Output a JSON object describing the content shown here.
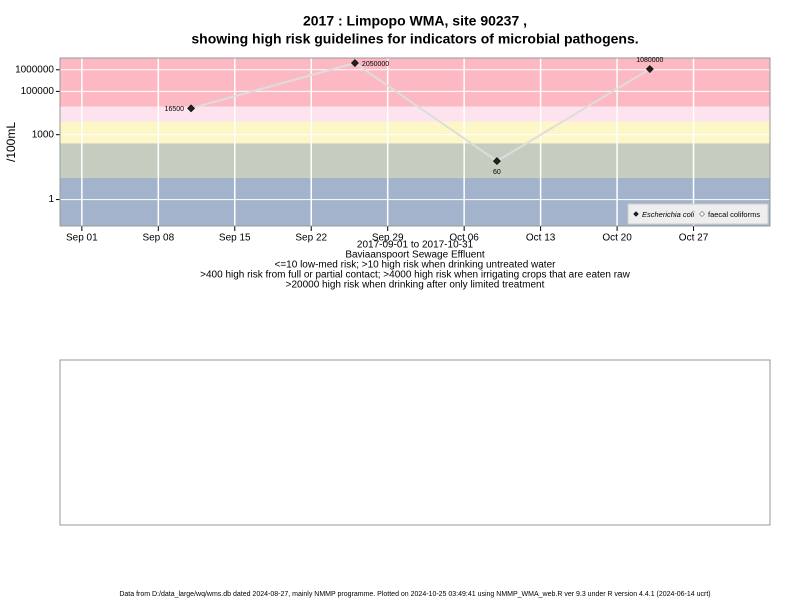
{
  "chart_data": {
    "type": "line",
    "title": [
      "2017 : Limpopo WMA, site 90237 ,",
      "showing high risk guidelines for indicators of microbial pathogens."
    ],
    "xlabel": [
      "2017-09-01 to 2017-10-31",
      "Baviaanspoort Sewage Effluent",
      "<=10 low-med risk; >10 high risk when drinking untreated water",
      ">400 high risk from full or partial contact; >4000 high risk when irrigating crops that are eaten raw",
      ">20000 high risk when drinking after only limited treatment"
    ],
    "ylabel": "/100mL",
    "x": [
      "2017-09-11",
      "2017-09-26",
      "2017-10-09",
      "2017-10-23"
    ],
    "series": [
      {
        "name": "Escherichia coli",
        "color": "#222222",
        "values": [
          16500,
          2050000,
          60,
          1080000
        ]
      },
      {
        "name": "faecal coliforms",
        "color": "#ffffff",
        "values": [
          null,
          null,
          null,
          null
        ]
      }
    ],
    "line_color": "#dddddd",
    "log_y": true,
    "ylim": [
      0.06,
      3500000
    ],
    "yticks": [
      1,
      1000,
      100000,
      1000000
    ],
    "xlim": [
      "2017-08-30",
      "2017-11-03"
    ],
    "xticks": [
      {
        "value": "2017-09-01",
        "label": "Sep 01"
      },
      {
        "value": "2017-09-08",
        "label": "Sep 08"
      },
      {
        "value": "2017-09-15",
        "label": "Sep 15"
      },
      {
        "value": "2017-09-22",
        "label": "Sep 22"
      },
      {
        "value": "2017-09-29",
        "label": "Sep 29"
      },
      {
        "value": "2017-10-06",
        "label": "Oct 06"
      },
      {
        "value": "2017-10-13",
        "label": "Oct 13"
      },
      {
        "value": "2017-10-20",
        "label": "Oct 20"
      },
      {
        "value": "2017-10-27",
        "label": "Oct 27"
      }
    ],
    "thresholds": [
      10,
      400,
      4000,
      20000
    ],
    "band_colors": [
      "#a3b3cc",
      "#c5cdc0",
      "#fdf7c8",
      "#fde3ee",
      "#fdb9c3"
    ],
    "grid": true,
    "legend": "bottom-right",
    "footer": "Data from D:/data_large/wq/wms.db dated 2024-08-27, mainly NMMP programme. Plotted on 2024-10-25 03:49:41 using NMMP_WMA_web.R ver 9.3 under R version 4.4.1 (2024-06-14 ucrt)"
  }
}
